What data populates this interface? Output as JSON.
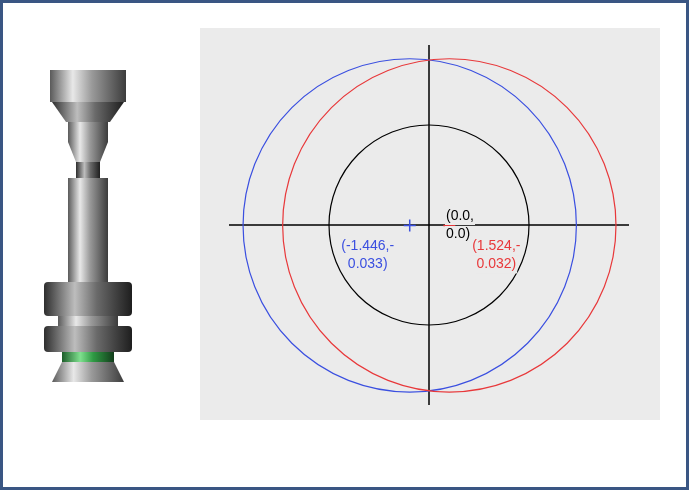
{
  "chart_data": {
    "type": "scatter",
    "xlim": [
      -15,
      15
    ],
    "ylim": [
      -13.5,
      13.5
    ],
    "tick_labels": false,
    "grid": false,
    "series": [
      {
        "color": "#000000",
        "marker": "none",
        "x": [
          0.0
        ],
        "values": [
          0.0
        ],
        "radius": [
          7.5
        ],
        "label": "(0.0,0.0)"
      },
      {
        "color": "#3a4fe0",
        "marker": "plus",
        "x": [
          -1.446
        ],
        "values": [
          -0.033
        ],
        "radius": [
          12.5
        ],
        "label": "(-1.446,-0.033)"
      },
      {
        "color": "#e8383a",
        "marker": "plus",
        "x": [
          1.524
        ],
        "values": [
          -0.032
        ],
        "radius": [
          12.5
        ],
        "label": "(1.524,-0.032)"
      }
    ]
  }
}
